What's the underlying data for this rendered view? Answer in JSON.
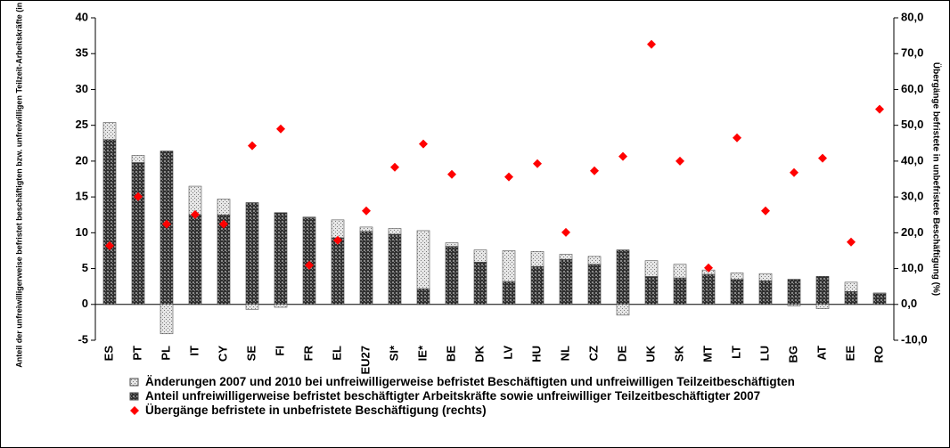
{
  "chart_data": {
    "type": "bar",
    "y_label": "Anteil der unfreiwilligerweise befristet beschäftigten bzw. unfreiwilligen Teilzeit-Arbeitskräfte (in %)",
    "y2_label": "Übergänge befristete in unbefristete Beschäftigung (%)",
    "categories": [
      "ES",
      "PT",
      "PL",
      "IT",
      "CY",
      "SE",
      "FI",
      "FR",
      "EL",
      "EU27",
      "SI*",
      "IE*",
      "BE",
      "DK",
      "LV",
      "HU",
      "NL",
      "CZ",
      "DE",
      "UK",
      "SK",
      "MT",
      "LT",
      "LU",
      "BG",
      "AT",
      "EE",
      "RO"
    ],
    "ylim": [
      -5,
      40
    ],
    "yticks": [
      -5,
      0,
      5,
      10,
      15,
      20,
      25,
      30,
      35,
      40
    ],
    "y2lim": [
      -10,
      80
    ],
    "y2ticks": [
      {
        "value": -10,
        "label": "-10,0"
      },
      {
        "value": 0,
        "label": "0,0"
      },
      {
        "value": 10,
        "label": "10,0"
      },
      {
        "value": 20,
        "label": "20,0"
      },
      {
        "value": 30,
        "label": "30,0"
      },
      {
        "value": 40,
        "label": "40,0"
      },
      {
        "value": 50,
        "label": "50,0"
      },
      {
        "value": 60,
        "label": "60,0"
      },
      {
        "value": 70,
        "label": "70,0"
      },
      {
        "value": 80,
        "label": "80,0"
      }
    ],
    "legend": "bottom",
    "series": [
      {
        "name": "Änderungen 2007 und 2010 bei unfreiwilligerweise befristet Beschäftigten und unfreiwilligen Teilzeitbeschäftigten",
        "color": "#d9d9d9",
        "values": [
          2.4,
          1.0,
          -4.1,
          4.0,
          2.2,
          -0.7,
          -0.4,
          0.1,
          2.5,
          0.6,
          0.8,
          8.1,
          0.5,
          1.7,
          4.3,
          2.1,
          0.7,
          1.1,
          -1.5,
          2.2,
          1.9,
          0.6,
          0.9,
          1.0,
          -0.2,
          -0.6,
          1.3,
          0.1
        ]
      },
      {
        "name": "Anteil unfreiwilligerweise befristet beschäftigter Arbeitskräfte sowie unfreiwilliger Teilzeitbeschäftigter 2007",
        "color": "#404040",
        "values": [
          23.0,
          19.8,
          21.4,
          12.5,
          12.5,
          14.2,
          12.8,
          12.1,
          9.3,
          10.2,
          9.8,
          2.2,
          8.1,
          5.9,
          3.2,
          5.3,
          6.3,
          5.6,
          7.6,
          3.9,
          3.7,
          4.2,
          3.5,
          3.3,
          3.5,
          3.9,
          1.8,
          1.5
        ]
      },
      {
        "name": "Übergänge befristete in unbefristete Beschäftigung (rechts)",
        "color": "#ff0000",
        "axis": "y2",
        "marker": "diamond",
        "values": [
          16.4,
          30.1,
          22.4,
          25.1,
          22.4,
          44.3,
          49.0,
          10.9,
          17.9,
          26.1,
          38.3,
          44.8,
          36.3,
          null,
          35.6,
          39.3,
          20.1,
          37.3,
          41.3,
          72.6,
          40.0,
          10.2,
          46.5,
          26.1,
          36.8,
          40.8,
          17.4,
          54.5
        ]
      }
    ]
  }
}
